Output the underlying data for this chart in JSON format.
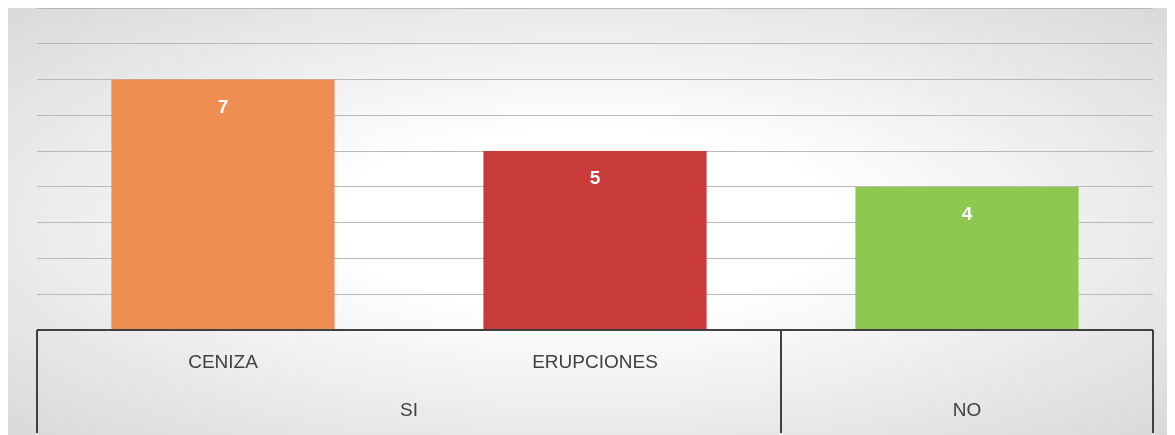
{
  "chart_data": {
    "type": "bar",
    "categories": [
      "CENIZA",
      "ERUPCIONES",
      null
    ],
    "values": [
      7,
      5,
      4
    ],
    "colors": [
      "#ed8d4f",
      "#c93b39",
      "#8dc94f"
    ],
    "data_labels": true,
    "ylim": [
      0,
      9
    ],
    "yticks": [
      {
        "value": 0,
        "label": null
      },
      {
        "value": 1,
        "label": null
      },
      {
        "value": 2,
        "label": null
      },
      {
        "value": 3,
        "label": null
      },
      {
        "value": 4,
        "label": null
      },
      {
        "value": 5,
        "label": null
      },
      {
        "value": 6,
        "label": null
      },
      {
        "value": 7,
        "label": null
      },
      {
        "value": 8,
        "label": null
      },
      {
        "value": 9,
        "label": null
      }
    ],
    "tick_labels": "x",
    "grid": "y",
    "legend": false,
    "annotations": [
      "SI",
      "NO"
    ]
  }
}
